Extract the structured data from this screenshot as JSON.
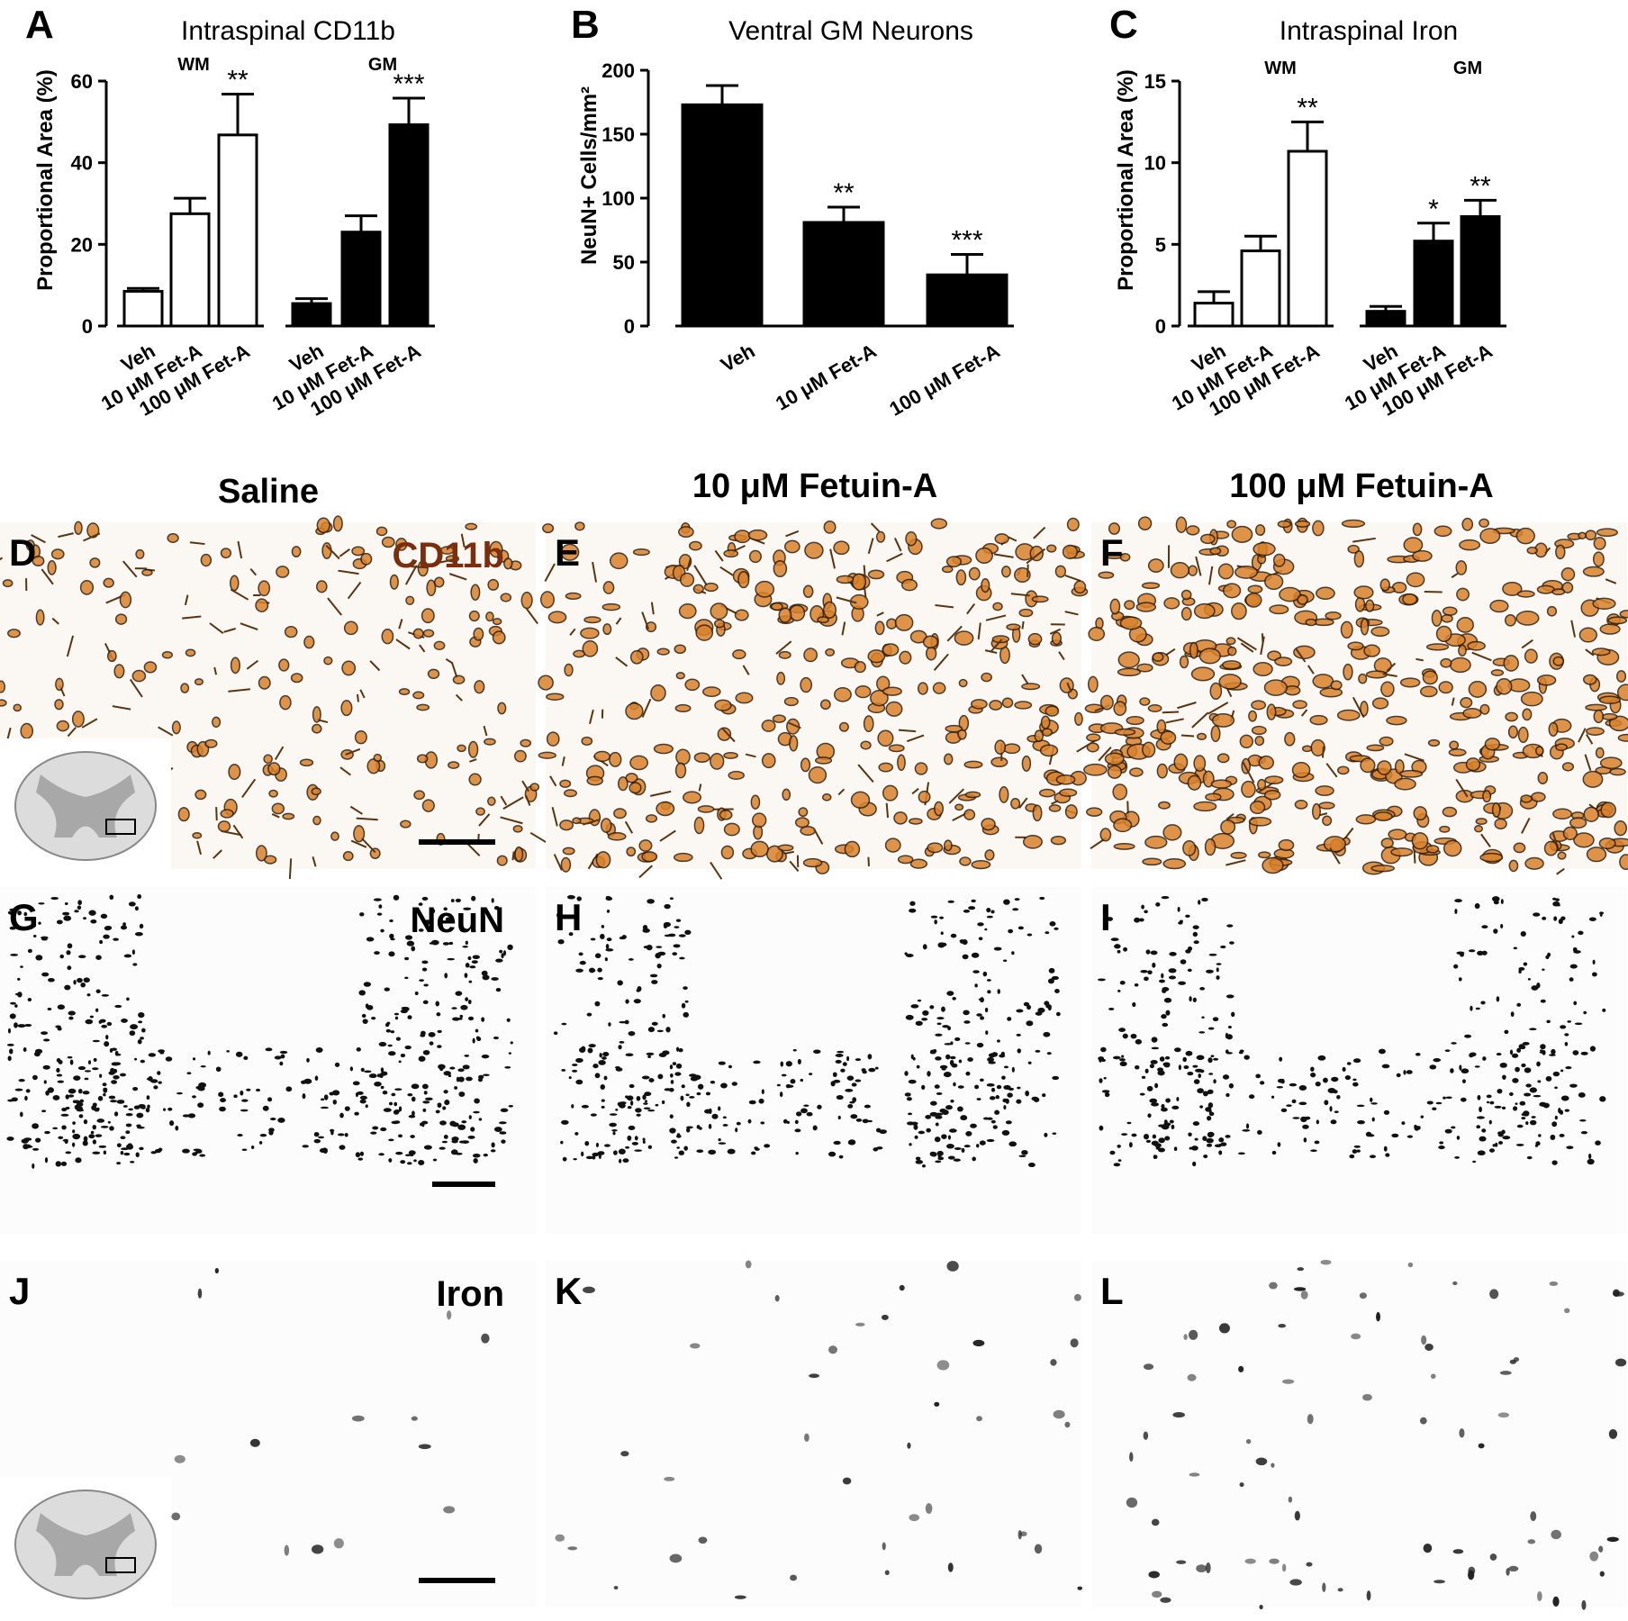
{
  "chart_data": [
    {
      "type": "bar",
      "panel": "A",
      "title": "Intraspinal CD11b",
      "ylabel": "Proportional Area (%)",
      "ylim": [
        0,
        60
      ],
      "yticks": [
        "0",
        "20",
        "40",
        "60"
      ],
      "groups": [
        {
          "name": "WM",
          "categories": [
            "Veh",
            "10 μM Fet-A",
            "100 μM Fet-A"
          ],
          "values": [
            8.5,
            27.5,
            46.8
          ],
          "errors": [
            0.7,
            3.8,
            10.0
          ],
          "significance": [
            "",
            "",
            "**"
          ],
          "fill": "white"
        },
        {
          "name": "GM",
          "categories": [
            "Veh",
            "10 μM Fet-A",
            "100 μM Fet-A"
          ],
          "values": [
            5.5,
            23.0,
            49.3
          ],
          "errors": [
            1.2,
            4.0,
            6.5
          ],
          "significance": [
            "",
            "",
            "***"
          ],
          "fill": "black"
        }
      ]
    },
    {
      "type": "bar",
      "panel": "B",
      "title": "Ventral GM Neurons",
      "ylabel": "NeuN+ Cells/mm²",
      "ylim": [
        0,
        200
      ],
      "yticks": [
        "0",
        "50",
        "100",
        "150",
        "200"
      ],
      "groups": [
        {
          "name": "",
          "categories": [
            "Veh",
            "10 μM Fet-A",
            "100 μM Fet-A"
          ],
          "values": [
            173,
            81,
            40
          ],
          "errors": [
            15,
            12,
            16
          ],
          "significance": [
            "",
            "**",
            "***"
          ],
          "fill": "black"
        }
      ]
    },
    {
      "type": "bar",
      "panel": "C",
      "title": "Intraspinal Iron",
      "ylabel": "Proportional Area (%)",
      "ylim": [
        0,
        15
      ],
      "yticks": [
        "0",
        "5",
        "10",
        "15"
      ],
      "groups": [
        {
          "name": "WM",
          "categories": [
            "Veh",
            "10 μM Fet-A",
            "100 μM Fet-A"
          ],
          "values": [
            1.4,
            4.6,
            10.7
          ],
          "errors": [
            0.7,
            0.9,
            1.8
          ],
          "significance": [
            "",
            "",
            "**"
          ],
          "fill": "white"
        },
        {
          "name": "GM",
          "categories": [
            "Veh",
            "10 μM Fet-A",
            "100 μM Fet-A"
          ],
          "values": [
            0.9,
            5.2,
            6.7
          ],
          "errors": [
            0.3,
            1.1,
            1.0
          ],
          "significance": [
            "",
            "*",
            "**"
          ],
          "fill": "black"
        }
      ]
    }
  ],
  "micrographs": {
    "column_titles": [
      "Saline",
      "10 μM Fetuin-A",
      "100 μM Fetuin-A"
    ],
    "rows": [
      {
        "stain": "CD11b",
        "stain_color": "#7a2e0e",
        "letters": [
          "D",
          "E",
          "F"
        ],
        "density": [
          0.35,
          0.7,
          0.95
        ]
      },
      {
        "stain": "NeuN",
        "stain_color": "#000000",
        "letters": [
          "G",
          "H",
          "I"
        ],
        "density": [
          0.9,
          0.7,
          0.55
        ]
      },
      {
        "stain": "Iron",
        "stain_color": "#000000",
        "letters": [
          "J",
          "K",
          "L"
        ],
        "density": [
          0.05,
          0.25,
          0.6
        ]
      }
    ]
  }
}
